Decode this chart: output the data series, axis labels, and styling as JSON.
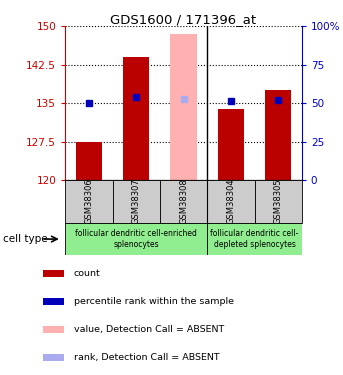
{
  "title": "GDS1600 / 171396_at",
  "samples": [
    "GSM38306",
    "GSM38307",
    "GSM38308",
    "GSM38304",
    "GSM38305"
  ],
  "bar_bottom": 120,
  "ylim_left": [
    120,
    150
  ],
  "ylim_right": [
    0,
    100
  ],
  "yticks_left": [
    120,
    127.5,
    135,
    142.5,
    150
  ],
  "yticks_right": [
    0,
    25,
    50,
    75,
    100
  ],
  "counts": [
    127.5,
    144.0,
    null,
    133.8,
    137.5
  ],
  "ranks": [
    135.0,
    136.2,
    null,
    135.4,
    135.6
  ],
  "absent_value": [
    null,
    null,
    148.5,
    null,
    null
  ],
  "absent_rank": [
    null,
    null,
    135.8,
    null,
    null
  ],
  "bar_color_red": "#BB0000",
  "bar_color_pink": "#FFB0B0",
  "dot_color_blue": "#0000BB",
  "dot_color_lightblue": "#AAAAEE",
  "left_axis_color": "#CC0000",
  "right_axis_color": "#0000CC",
  "ytick_label_left": [
    "120",
    "127.5",
    "135",
    "142.5",
    "150"
  ],
  "ytick_label_right": [
    "0",
    "25",
    "50",
    "75",
    "100%"
  ],
  "cell_type_groups": [
    {
      "label": "follicular dendritic cell-enriched\nsplenocytes",
      "color": "#90EE90",
      "start": 0,
      "end": 3
    },
    {
      "label": "follicular dendritic cell-\ndepleted splenocytes",
      "color": "#90EE90",
      "start": 3,
      "end": 5
    }
  ],
  "legend_items": [
    {
      "label": "count",
      "color": "#BB0000"
    },
    {
      "label": "percentile rank within the sample",
      "color": "#0000BB"
    },
    {
      "label": "value, Detection Call = ABSENT",
      "color": "#FFB0B0"
    },
    {
      "label": "rank, Detection Call = ABSENT",
      "color": "#AAAAEE"
    }
  ],
  "sample_bg_color": "#CCCCCC",
  "bar_width": 0.55
}
